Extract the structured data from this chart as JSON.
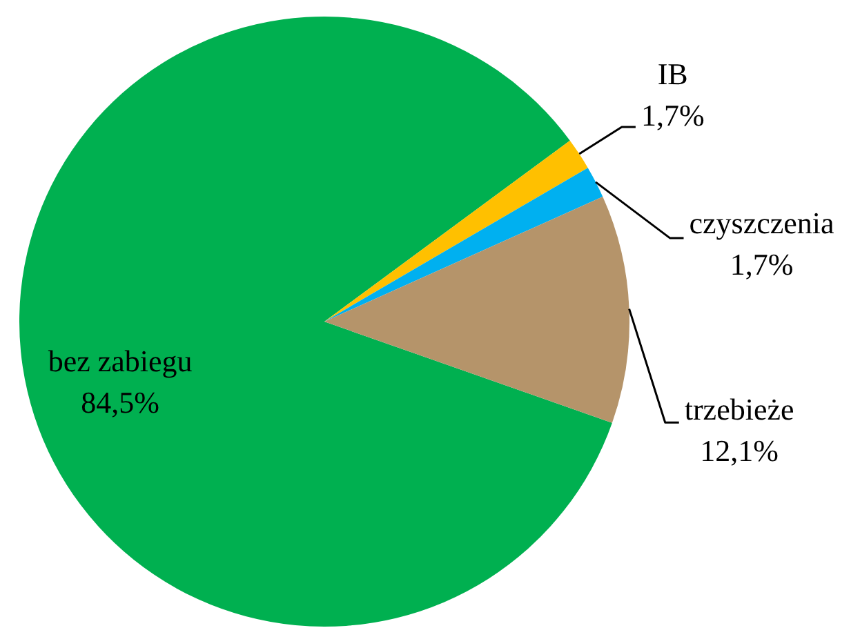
{
  "chart_data": {
    "type": "pie",
    "categories": [
      "bez zabiegu",
      "IB",
      "czyszczenia",
      "trzebieże"
    ],
    "values": [
      84.5,
      1.7,
      1.7,
      12.1
    ],
    "colors": [
      "#00b050",
      "#ffc000",
      "#00b0f0",
      "#b5946a"
    ],
    "value_labels": [
      "84,5%",
      "1,7%",
      "1,7%",
      "12,1%"
    ]
  }
}
